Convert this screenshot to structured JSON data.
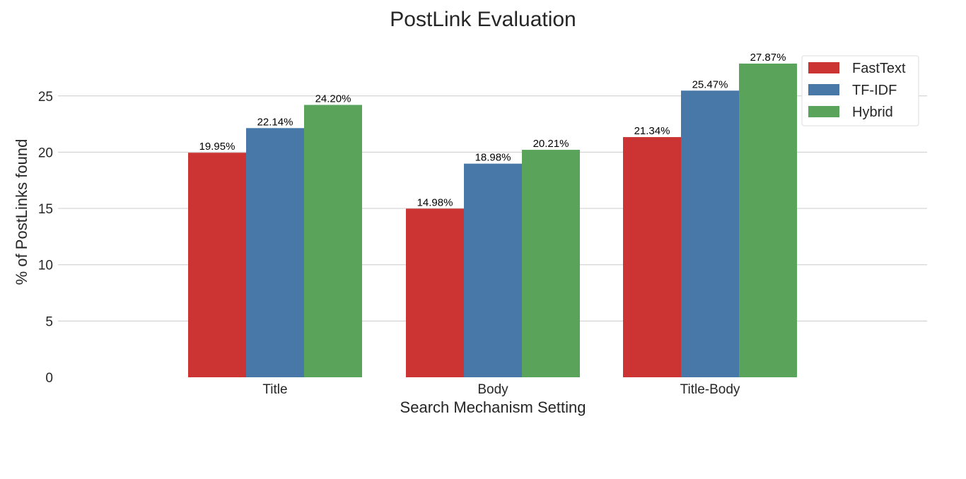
{
  "chart_data": {
    "type": "bar",
    "title": "PostLink Evaluation",
    "xlabel": "Search Mechanism Setting",
    "ylabel": "% of PostLinks found",
    "categories": [
      "Title",
      "Body",
      "Title-Body"
    ],
    "series": [
      {
        "name": "FastText",
        "color": "#cc3333",
        "values": [
          19.95,
          14.98,
          21.34
        ],
        "labels": [
          "19.95%",
          "14.98%",
          "21.34%"
        ]
      },
      {
        "name": "TF-IDF",
        "color": "#4778a8",
        "values": [
          22.14,
          18.98,
          25.47
        ],
        "labels": [
          "22.14%",
          "18.98%",
          "25.47%"
        ]
      },
      {
        "name": "Hybrid",
        "color": "#59a35a",
        "values": [
          24.2,
          20.21,
          27.87
        ],
        "labels": [
          "24.20%",
          "20.21%",
          "27.87%"
        ]
      }
    ],
    "yticks": [
      0,
      5,
      10,
      15,
      20,
      25
    ],
    "ylim": [
      0,
      28
    ],
    "grid": "horizontal",
    "legend_position": "top-right"
  }
}
